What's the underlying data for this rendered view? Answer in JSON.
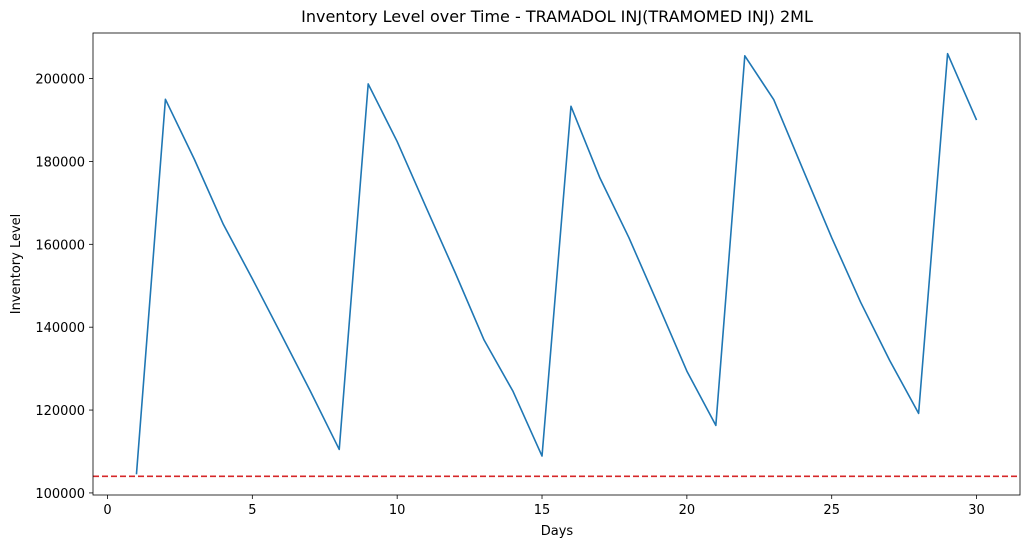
{
  "chart_data": {
    "type": "line",
    "title": "Inventory Level over Time - TRAMADOL INJ(TRAMOMED INJ) 2ML",
    "xlabel": "Days",
    "ylabel": "Inventory Level",
    "xlim": [
      -0.5,
      31.5
    ],
    "ylim": [
      99500,
      211000
    ],
    "xticks": [
      0,
      5,
      10,
      15,
      20,
      25,
      30
    ],
    "yticks": [
      100000,
      120000,
      140000,
      160000,
      180000,
      200000
    ],
    "xtick_labels": [
      "0",
      "5",
      "10",
      "15",
      "20",
      "25",
      "30"
    ],
    "ytick_labels": [
      "100000",
      "120000",
      "140000",
      "160000",
      "180000",
      "200000"
    ],
    "grid": false,
    "series": [
      {
        "color": "#1f77b4",
        "x": [
          1,
          2,
          3,
          4,
          5,
          6,
          7,
          8,
          9,
          10,
          11,
          12,
          13,
          14,
          15,
          16,
          17,
          18,
          19,
          20,
          21,
          22,
          23,
          24,
          25,
          26,
          27,
          28,
          29,
          30
        ],
        "y": [
          104500,
          195000,
          180500,
          164800,
          151700,
          138200,
          124600,
          110500,
          198700,
          184800,
          168900,
          153200,
          136900,
          124500,
          108900,
          193300,
          176000,
          161600,
          145600,
          129400,
          116300,
          205500,
          194900,
          178200,
          161600,
          146000,
          132000,
          119200,
          206000,
          190000
        ]
      }
    ],
    "reference_lines": [
      {
        "orientation": "horizontal",
        "y": 104000,
        "color": "#d62728",
        "style": "dashed"
      }
    ]
  }
}
